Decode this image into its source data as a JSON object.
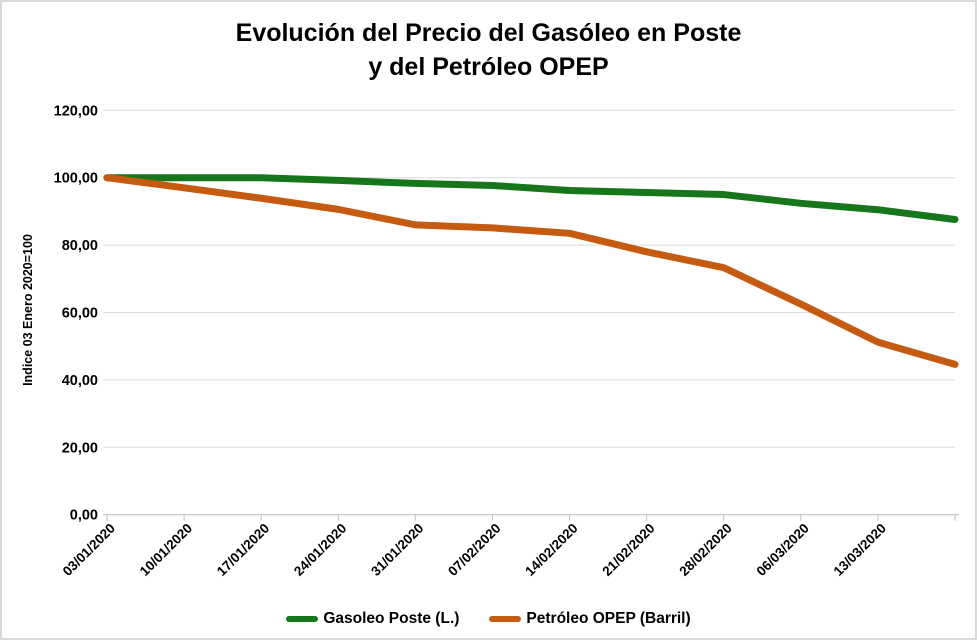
{
  "title": {
    "line1": "Evolución del Precio del Gasóleo en Poste",
    "line2": "y del Petróleo OPEP"
  },
  "y_axis": {
    "title": "Indice 03 Enero 2020=100",
    "tick_labels": [
      "0,00",
      "20,00",
      "40,00",
      "60,00",
      "80,00",
      "100,00",
      "120,00"
    ]
  },
  "legend": {
    "items": [
      {
        "label": "Gasoleo Poste (L.)",
        "color": "#17761B"
      },
      {
        "label": "Petróleo OPEP (Barril)",
        "color": "#C55A11"
      }
    ]
  },
  "chart_data": {
    "type": "line",
    "x_tick_labels": [
      "03/01/2020",
      "10/01/2020",
      "17/01/2020",
      "24/01/2020",
      "31/01/2020",
      "07/02/2020",
      "14/02/2020",
      "21/02/2020",
      "28/02/2020",
      "06/03/2020",
      "13/03/2020"
    ],
    "n_points": 12,
    "ylim": [
      0,
      120
    ],
    "ytick_step": 20,
    "grid": true,
    "legend_position": "bottom",
    "series": [
      {
        "name": "Gasoleo Poste (L.)",
        "color": "#17761B",
        "values": [
          100.0,
          100.0,
          100.0,
          99.2,
          98.3,
          97.7,
          96.2,
          95.6,
          95.0,
          92.4,
          90.5,
          87.6
        ]
      },
      {
        "name": "Petróleo OPEP (Barril)",
        "color": "#C55A11",
        "values": [
          100.0,
          97.0,
          93.9,
          90.6,
          86.0,
          85.1,
          83.5,
          78.0,
          73.3,
          62.5,
          51.2,
          44.6
        ]
      }
    ]
  },
  "colors": {
    "background": "#FFFFFF",
    "border": "#D9D9D9",
    "grid": "#DADADA",
    "axis": "#BFBFBF",
    "text": "#000000"
  }
}
